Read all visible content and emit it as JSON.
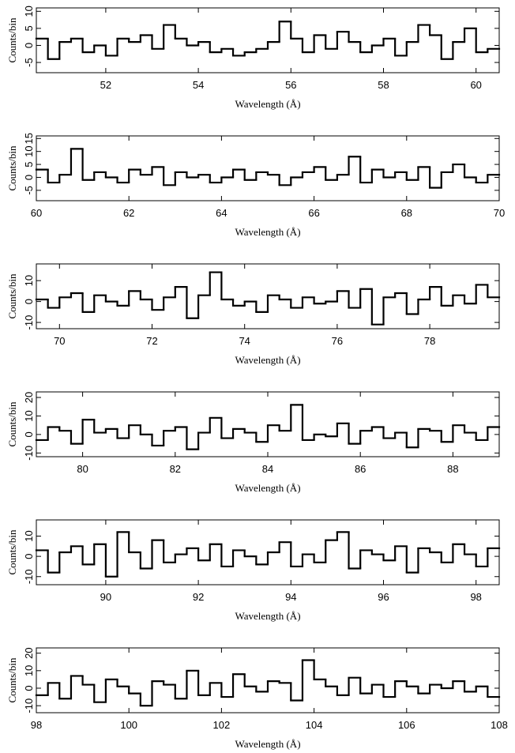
{
  "chart_data": [
    {
      "type": "histogram",
      "xlabel": "Wavelength (Å)",
      "ylabel": "Counts/bin",
      "color": "#000000",
      "xlim": [
        50.5,
        60.5
      ],
      "xticks": [
        52,
        54,
        56,
        58,
        60
      ],
      "ylim": [
        -8,
        11
      ],
      "yticks": [
        -5,
        0,
        5,
        10
      ],
      "bins": [
        50.5,
        50.75,
        51,
        51.25,
        51.5,
        51.75,
        52,
        52.25,
        52.5,
        52.75,
        53,
        53.25,
        53.5,
        53.75,
        54,
        54.25,
        54.5,
        54.75,
        55,
        55.25,
        55.5,
        55.75,
        56,
        56.25,
        56.5,
        56.75,
        57,
        57.25,
        57.5,
        57.75,
        58,
        58.25,
        58.5,
        58.75,
        59,
        59.25,
        59.5,
        59.75,
        60,
        60.25,
        60.5
      ],
      "values": [
        2,
        -4,
        1,
        2,
        -2,
        0,
        -3,
        2,
        1,
        3,
        -1,
        6,
        2,
        0,
        1,
        -2,
        -1,
        -3,
        -2,
        -1,
        1,
        7,
        2,
        -2,
        3,
        -1,
        4,
        1,
        -2,
        0,
        2,
        -3,
        1,
        6,
        3,
        -4,
        1,
        5,
        -2,
        -1
      ]
    },
    {
      "type": "histogram",
      "xlabel": "Wavelength (Å)",
      "ylabel": "Counts/bin",
      "color": "#000000",
      "xlim": [
        60,
        70
      ],
      "xticks": [
        60,
        62,
        64,
        66,
        68,
        70
      ],
      "ylim": [
        -9,
        16
      ],
      "yticks": [
        -5,
        0,
        5,
        10,
        15
      ],
      "bins": [
        60,
        60.25,
        60.5,
        60.75,
        61,
        61.25,
        61.5,
        61.75,
        62,
        62.25,
        62.5,
        62.75,
        63,
        63.25,
        63.5,
        63.75,
        64,
        64.25,
        64.5,
        64.75,
        65,
        65.25,
        65.5,
        65.75,
        66,
        66.25,
        66.5,
        66.75,
        67,
        67.25,
        67.5,
        67.75,
        68,
        68.25,
        68.5,
        68.75,
        69,
        69.25,
        69.5,
        69.75,
        70
      ],
      "values": [
        3,
        -2,
        1,
        11,
        -1,
        2,
        0,
        -2,
        3,
        1,
        4,
        -3,
        2,
        0,
        1,
        -2,
        0,
        3,
        -1,
        2,
        1,
        -3,
        0,
        2,
        4,
        -1,
        1,
        8,
        -2,
        3,
        0,
        2,
        -1,
        4,
        -4,
        2,
        5,
        0,
        -2,
        1
      ]
    },
    {
      "type": "histogram",
      "xlabel": "Wavelength (Å)",
      "ylabel": "Counts/bin",
      "color": "#000000",
      "xlim": [
        69.5,
        79.5
      ],
      "xticks": [
        70,
        72,
        74,
        76,
        78
      ],
      "ylim": [
        -13,
        18
      ],
      "yticks": [
        -10,
        0,
        10
      ],
      "bins": [
        69.5,
        69.75,
        70,
        70.25,
        70.5,
        70.75,
        71,
        71.25,
        71.5,
        71.75,
        72,
        72.25,
        72.5,
        72.75,
        73,
        73.25,
        73.5,
        73.75,
        74,
        74.25,
        74.5,
        74.75,
        75,
        75.25,
        75.5,
        75.75,
        76,
        76.25,
        76.5,
        76.75,
        77,
        77.25,
        77.5,
        77.75,
        78,
        78.25,
        78.5,
        78.75,
        79,
        79.25,
        79.5
      ],
      "values": [
        1,
        -3,
        2,
        4,
        -5,
        3,
        0,
        -2,
        5,
        1,
        -4,
        2,
        7,
        -8,
        3,
        14,
        1,
        -2,
        0,
        -5,
        3,
        1,
        -3,
        2,
        -1,
        0,
        5,
        -3,
        6,
        -11,
        2,
        4,
        -6,
        1,
        7,
        -2,
        3,
        -1,
        8,
        2
      ]
    },
    {
      "type": "histogram",
      "xlabel": "Wavelength (Å)",
      "ylabel": "Counts/bin",
      "color": "#000000",
      "xlim": [
        79,
        89
      ],
      "xticks": [
        80,
        82,
        84,
        86,
        88
      ],
      "ylim": [
        -12,
        23
      ],
      "yticks": [
        -10,
        0,
        10,
        20
      ],
      "bins": [
        79,
        79.25,
        79.5,
        79.75,
        80,
        80.25,
        80.5,
        80.75,
        81,
        81.25,
        81.5,
        81.75,
        82,
        82.25,
        82.5,
        82.75,
        83,
        83.25,
        83.5,
        83.75,
        84,
        84.25,
        84.5,
        84.75,
        85,
        85.25,
        85.5,
        85.75,
        86,
        86.25,
        86.5,
        86.75,
        87,
        87.25,
        87.5,
        87.75,
        88,
        88.25,
        88.5,
        88.75,
        89
      ],
      "values": [
        -3,
        4,
        2,
        -5,
        8,
        1,
        3,
        -2,
        5,
        0,
        -6,
        2,
        4,
        -8,
        1,
        9,
        -2,
        3,
        1,
        -4,
        5,
        2,
        16,
        -3,
        0,
        -1,
        6,
        -5,
        2,
        4,
        -2,
        1,
        -7,
        3,
        2,
        -4,
        5,
        1,
        -3,
        4
      ]
    },
    {
      "type": "histogram",
      "xlabel": "Wavelength (Å)",
      "ylabel": "Counts/bin",
      "color": "#000000",
      "xlim": [
        88.5,
        98.5
      ],
      "xticks": [
        90,
        92,
        94,
        96,
        98
      ],
      "ylim": [
        -14,
        18
      ],
      "yticks": [
        -10,
        0,
        10
      ],
      "bins": [
        88.5,
        88.75,
        89,
        89.25,
        89.5,
        89.75,
        90,
        90.25,
        90.5,
        90.75,
        91,
        91.25,
        91.5,
        91.75,
        92,
        92.25,
        92.5,
        92.75,
        93,
        93.25,
        93.5,
        93.75,
        94,
        94.25,
        94.5,
        94.75,
        95,
        95.25,
        95.5,
        95.75,
        96,
        96.25,
        96.5,
        96.75,
        97,
        97.25,
        97.5,
        97.75,
        98,
        98.25,
        98.5
      ],
      "values": [
        3,
        -8,
        2,
        5,
        -4,
        6,
        -10,
        12,
        2,
        -6,
        8,
        -3,
        1,
        4,
        -2,
        6,
        -5,
        3,
        0,
        -4,
        2,
        7,
        -5,
        1,
        -3,
        8,
        12,
        -6,
        3,
        1,
        -2,
        5,
        -8,
        4,
        2,
        -3,
        6,
        1,
        -5,
        4
      ]
    },
    {
      "type": "histogram",
      "xlabel": "Wavelength (Å)",
      "ylabel": "Counts/bin",
      "color": "#000000",
      "xlim": [
        98,
        108
      ],
      "xticks": [
        98,
        100,
        102,
        104,
        106,
        108
      ],
      "ylim": [
        -14,
        23
      ],
      "yticks": [
        -10,
        0,
        10,
        20
      ],
      "bins": [
        98,
        98.25,
        98.5,
        98.75,
        99,
        99.25,
        99.5,
        99.75,
        100,
        100.25,
        100.5,
        100.75,
        101,
        101.25,
        101.5,
        101.75,
        102,
        102.25,
        102.5,
        102.75,
        103,
        103.25,
        103.5,
        103.75,
        104,
        104.25,
        104.5,
        104.75,
        105,
        105.25,
        105.5,
        105.75,
        106,
        106.25,
        106.5,
        106.75,
        107,
        107.25,
        107.5,
        107.75,
        108
      ],
      "values": [
        -4,
        3,
        -6,
        7,
        2,
        -8,
        5,
        1,
        -3,
        -10,
        4,
        2,
        -6,
        10,
        -4,
        3,
        -5,
        8,
        1,
        -2,
        4,
        3,
        -7,
        16,
        5,
        1,
        -4,
        6,
        -3,
        2,
        -5,
        4,
        1,
        -3,
        2,
        0,
        4,
        -2,
        1,
        -5
      ]
    }
  ]
}
